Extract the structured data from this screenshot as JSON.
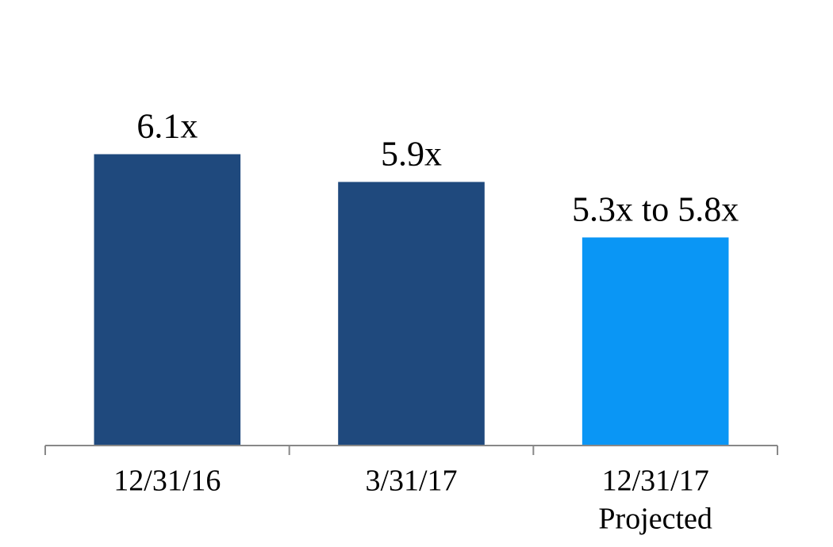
{
  "chart_data": {
    "type": "bar",
    "categories": [
      [
        "12/31/16"
      ],
      [
        "3/31/17"
      ],
      [
        "12/31/17",
        "Projected"
      ]
    ],
    "values": [
      6.1,
      5.9,
      5.5
    ],
    "value_labels": [
      "6.1x",
      "5.9x",
      "5.3x to 5.8x"
    ],
    "colors": [
      "#1f497d",
      "#1f497d",
      "#0a96f5"
    ],
    "ylim": [
      4,
      7
    ]
  }
}
